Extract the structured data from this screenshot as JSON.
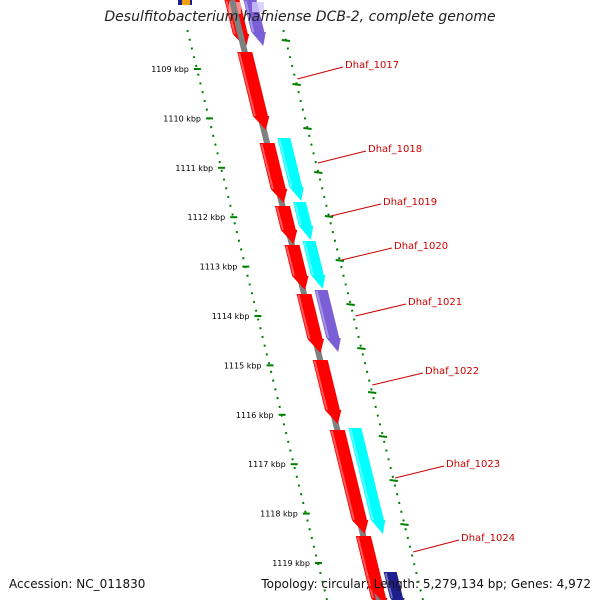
{
  "title": "Desulfitobacterium hafniense DCB-2, complete genome",
  "footer": {
    "accession": "Accession: NC_011830",
    "summary": "Topology: circular; Length: 5,279,134 bp; Genes: 4,972"
  },
  "colors": {
    "cds": "#ff0000",
    "cog_cyan": "#00ffff",
    "cog_purple": "#7a5fd6",
    "backbone": "#808080",
    "tick": "#008000",
    "label": "#cc0000"
  },
  "ticks": [
    "1109 kbp",
    "1110 kbp",
    "1111 kbp",
    "1112 kbp",
    "1113 kbp",
    "1114 kbp",
    "1115 kbp",
    "1116 kbp",
    "1117 kbp",
    "1118 kbp",
    "1119 kbp"
  ],
  "genes": [
    {
      "name": "Dhaf_1017",
      "cog": "none"
    },
    {
      "name": "Dhaf_1018",
      "cog": "cyan"
    },
    {
      "name": "Dhaf_1019",
      "cog": "cyan"
    },
    {
      "name": "Dhaf_1020",
      "cog": "cyan"
    },
    {
      "name": "Dhaf_1021",
      "cog": "purple"
    },
    {
      "name": "Dhaf_1022",
      "cog": "none"
    },
    {
      "name": "Dhaf_1023",
      "cog": "cyan"
    },
    {
      "name": "Dhaf_1024",
      "cog": "none"
    }
  ]
}
